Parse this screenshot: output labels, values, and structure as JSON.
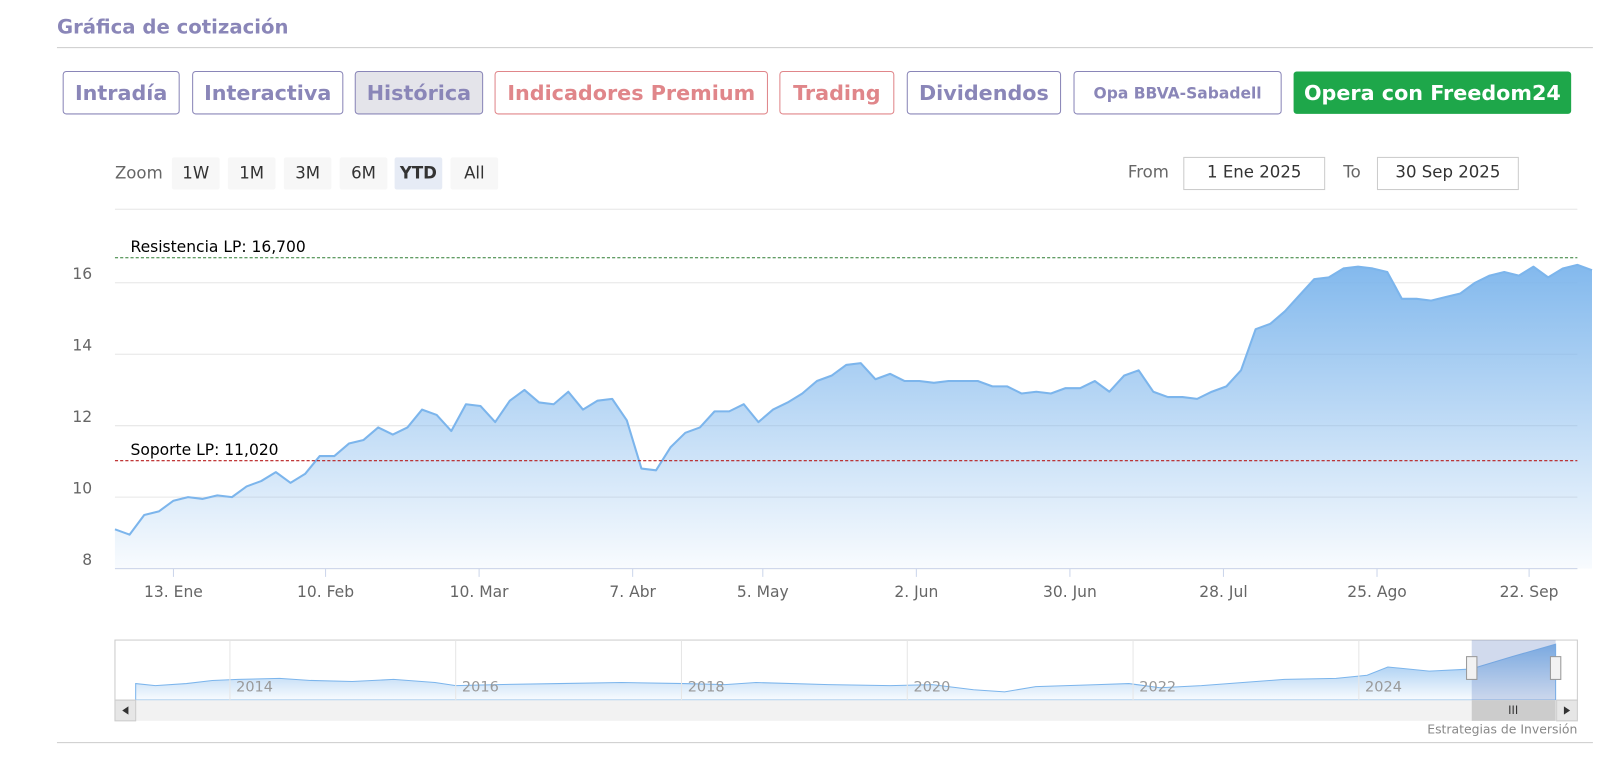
{
  "header": {
    "title": "Gráfica de cotización"
  },
  "tabs": [
    {
      "label": "Intradía",
      "color": "#8a86b8"
    },
    {
      "label": "Interactiva",
      "color": "#8a86b8"
    },
    {
      "label": "Histórica",
      "color": "#8a86b8"
    },
    {
      "label": "Indicadores Premium",
      "color": "#e0868a"
    },
    {
      "label": "Trading",
      "color": "#e0868a"
    },
    {
      "label": "Dividendos",
      "color": "#8a86b8"
    },
    {
      "label": "Opa BBVA-Sabadell",
      "color": "#8a86b8"
    }
  ],
  "active_tab": 2,
  "cta": {
    "label": "Opera con Freedom24",
    "color": "#1ea74a"
  },
  "zoom": {
    "label": "Zoom",
    "buttons": [
      "1W",
      "1M",
      "3M",
      "6M",
      "YTD",
      "All"
    ],
    "selected_index": 4
  },
  "range": {
    "from_label": "From",
    "from": "1 Ene 2025",
    "to_label": "To",
    "to": "30 Sep 2025"
  },
  "chart_data": {
    "type": "area",
    "color": "#7cb5ec",
    "values": [
      9.1,
      8.95,
      9.5,
      9.6,
      9.9,
      10.0,
      9.95,
      10.05,
      10.0,
      10.3,
      10.45,
      10.7,
      10.4,
      10.65,
      11.15,
      11.15,
      11.5,
      11.6,
      11.95,
      11.75,
      11.95,
      12.45,
      12.3,
      11.85,
      12.6,
      12.55,
      12.1,
      12.7,
      13.0,
      12.65,
      12.6,
      12.95,
      12.45,
      12.7,
      12.75,
      12.15,
      10.8,
      10.75,
      11.4,
      11.8,
      11.95,
      12.4,
      12.4,
      12.6,
      12.1,
      12.45,
      12.65,
      12.9,
      13.25,
      13.4,
      13.7,
      13.75,
      13.3,
      13.45,
      13.25,
      13.25,
      13.2,
      13.25,
      13.25,
      13.25,
      13.1,
      13.1,
      12.9,
      12.95,
      12.9,
      13.05,
      13.05,
      13.25,
      12.95,
      13.4,
      13.55,
      12.95,
      12.8,
      12.8,
      12.75,
      12.95,
      13.1,
      13.55,
      14.7,
      14.85,
      15.2,
      15.65,
      16.1,
      16.15,
      16.4,
      16.45,
      16.4,
      16.3,
      15.55,
      15.55,
      15.5,
      15.6,
      15.7,
      16.0,
      16.2,
      16.3,
      16.2,
      16.45,
      16.15,
      16.4,
      16.5,
      16.35
    ],
    "xlim": [
      0,
      100
    ],
    "xticks": [
      {
        "value": 4.0,
        "label": "13. Ene"
      },
      {
        "value": 14.4,
        "label": "10. Feb"
      },
      {
        "value": 24.9,
        "label": "10. Mar"
      },
      {
        "value": 35.4,
        "label": "7. Abr"
      },
      {
        "value": 44.3,
        "label": "5. May"
      },
      {
        "value": 54.8,
        "label": "2. Jun"
      },
      {
        "value": 65.3,
        "label": "30. Jun"
      },
      {
        "value": 75.8,
        "label": "28. Jul"
      },
      {
        "value": 86.3,
        "label": "25. Ago"
      },
      {
        "value": 96.7,
        "label": "22. Sep"
      }
    ],
    "ylim": [
      8,
      18
    ],
    "yticks": [
      8,
      10,
      12,
      14,
      16
    ],
    "grid": true,
    "plot_lines": [
      {
        "value": 16.7,
        "label": "Resistencia LP: 16,700",
        "color": "#2e7d32"
      },
      {
        "value": 11.02,
        "label": "Soporte LP: 11,020",
        "color": "#b71c1c"
      }
    ]
  },
  "navigator": {
    "years": [
      "2014",
      "2016",
      "2018",
      "2020",
      "2022",
      "2024"
    ]
  },
  "footer": "Estrategias de Inversión"
}
